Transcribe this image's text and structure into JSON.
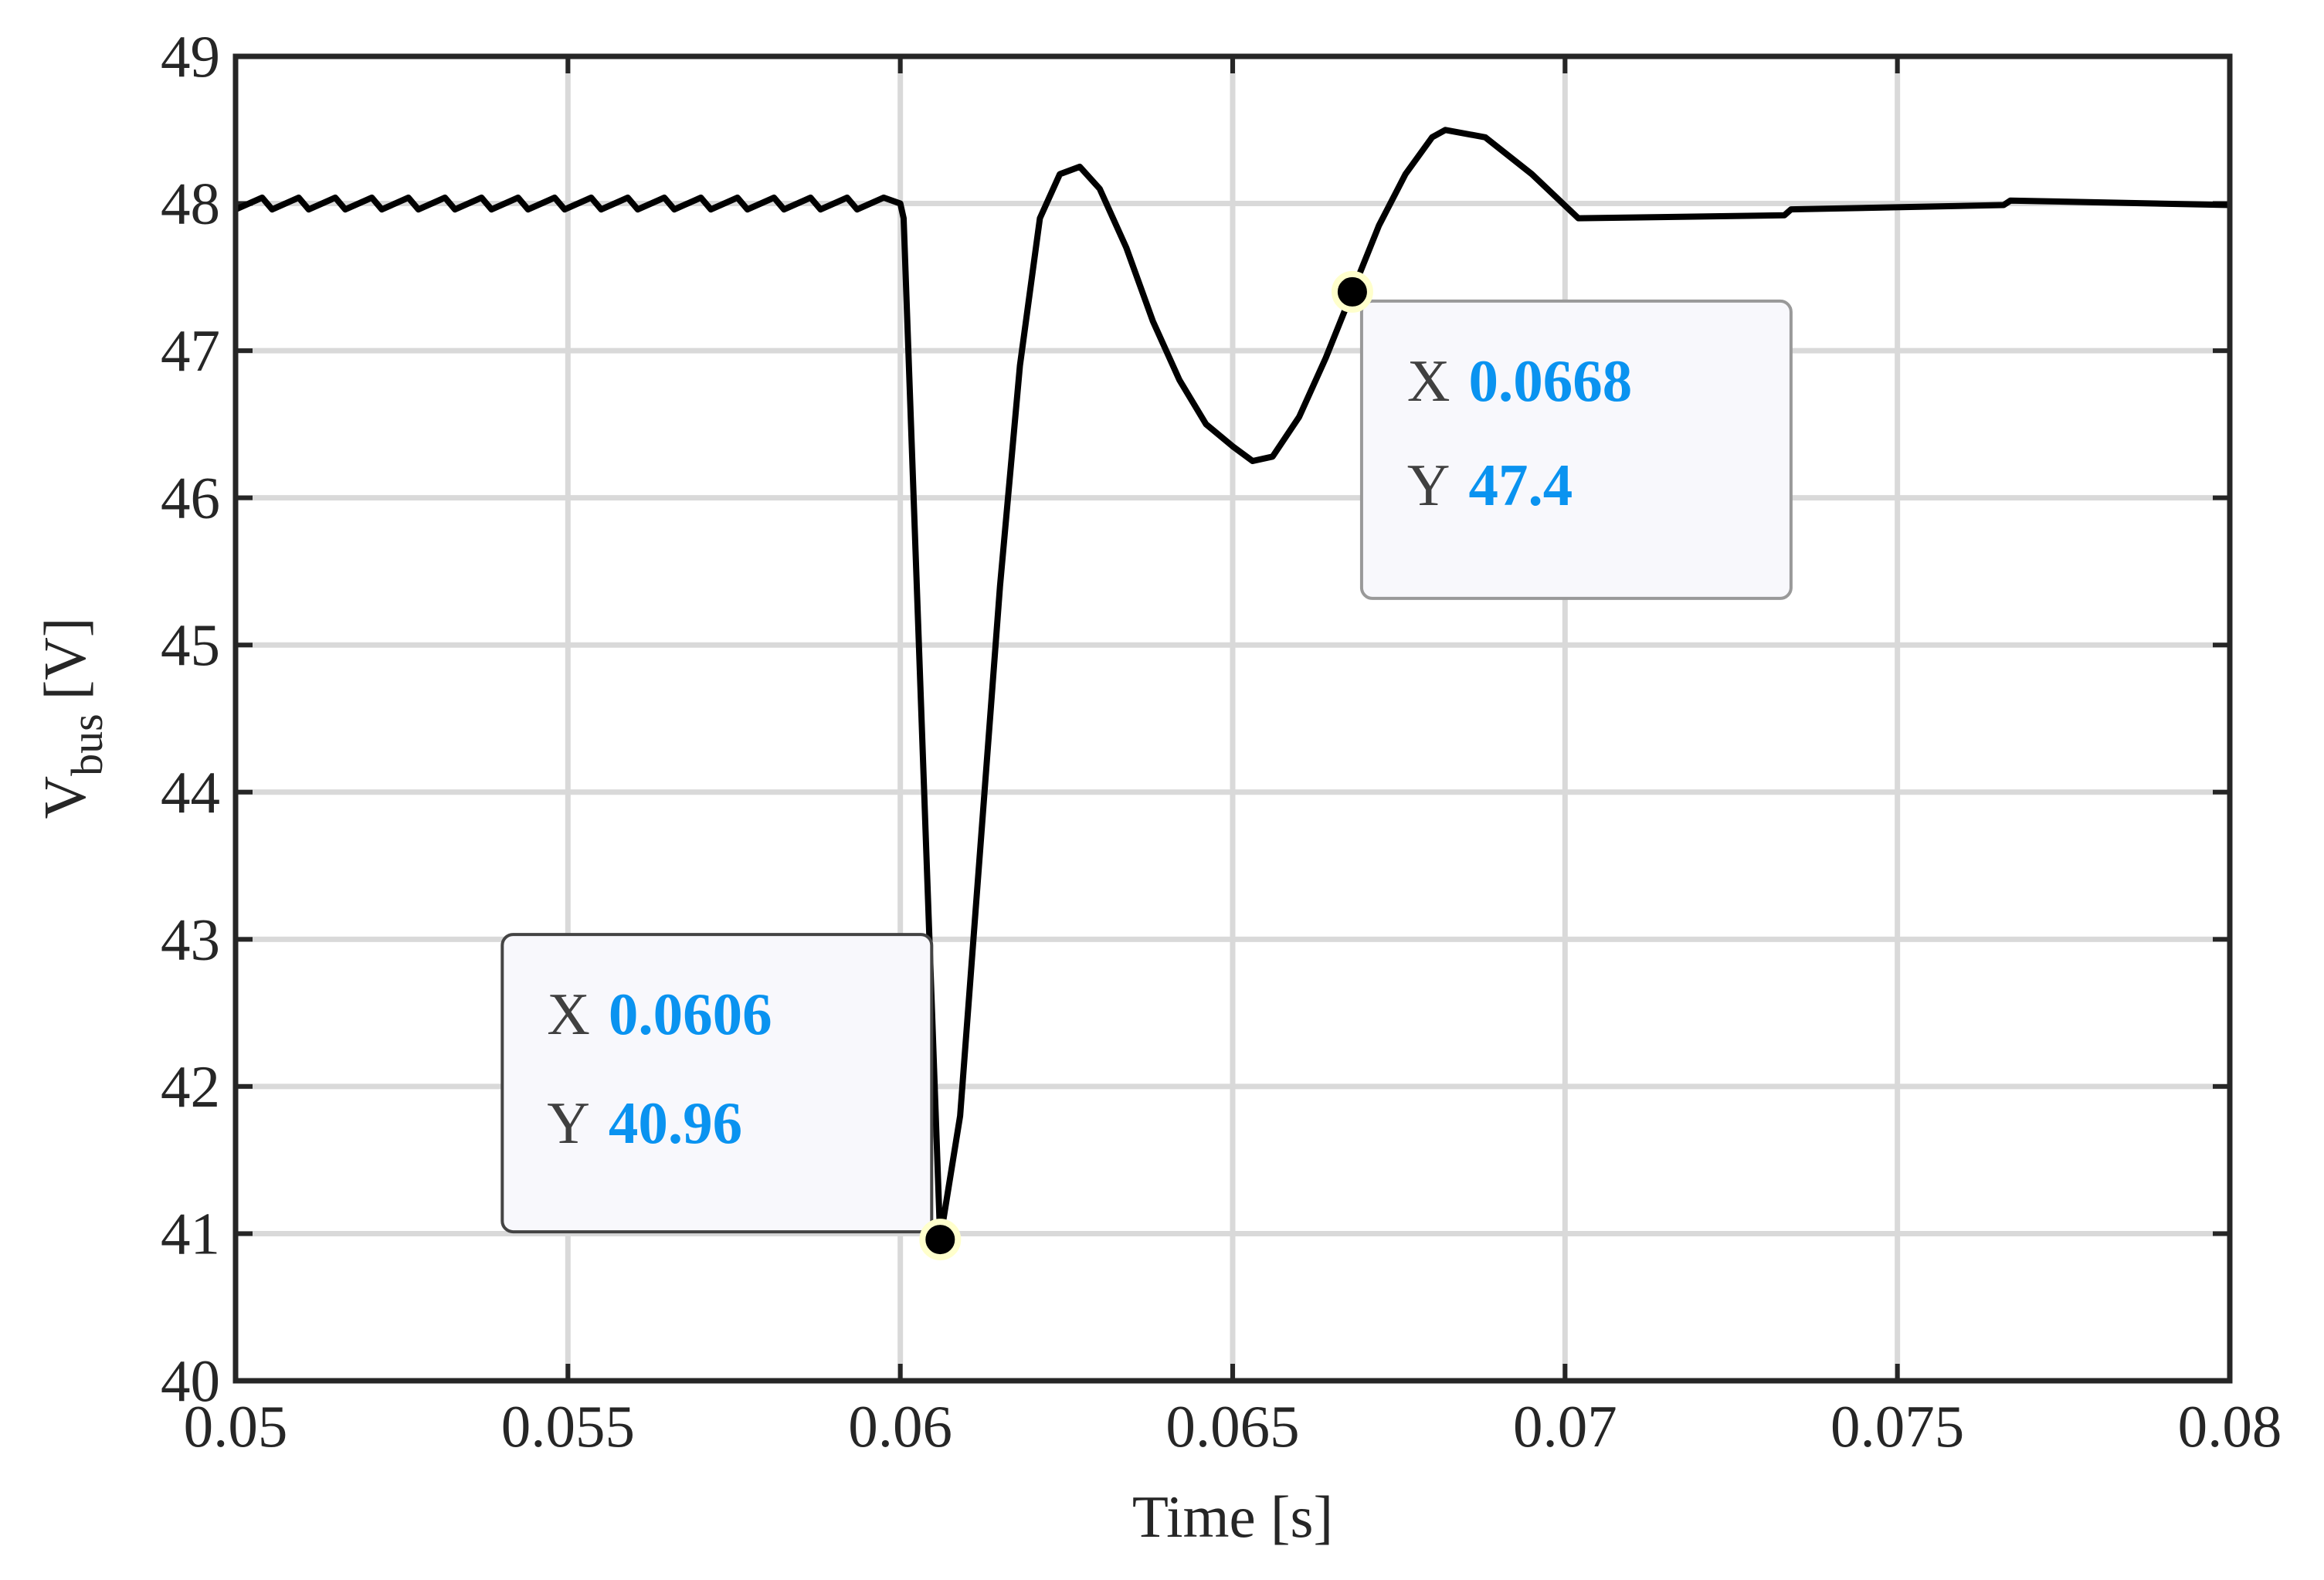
{
  "chart_data": {
    "type": "line",
    "xlabel": "Time [s]",
    "ylabel_parts": [
      "V",
      "bus",
      "[V]"
    ],
    "xlim": [
      0.05,
      0.08
    ],
    "ylim": [
      40,
      49
    ],
    "xticks": [
      0.05,
      0.055,
      0.06,
      0.065,
      0.07,
      0.075,
      0.08
    ],
    "yticks": [
      40,
      41,
      42,
      43,
      44,
      45,
      46,
      47,
      48,
      49
    ],
    "grid": true,
    "x": [
      0.05,
      0.0504,
      0.05055,
      0.05095,
      0.0511,
      0.0515,
      0.05165,
      0.05205,
      0.0522,
      0.0526,
      0.05275,
      0.05315,
      0.0533,
      0.0537,
      0.05385,
      0.05425,
      0.0544,
      0.0548,
      0.05495,
      0.05535,
      0.0555,
      0.0559,
      0.05605,
      0.05645,
      0.0566,
      0.057,
      0.05715,
      0.05755,
      0.0577,
      0.0581,
      0.05825,
      0.05865,
      0.0588,
      0.0592,
      0.05935,
      0.05975,
      0.06,
      0.06005,
      0.0606,
      0.0609,
      0.0612,
      0.0615,
      0.0618,
      0.0621,
      0.0624,
      0.0627,
      0.063,
      0.0634,
      0.0638,
      0.0642,
      0.0646,
      0.065,
      0.0653,
      0.0656,
      0.066,
      0.0664,
      0.0668,
      0.0672,
      0.0676,
      0.068,
      0.0682,
      0.0688,
      0.0695,
      0.0702,
      0.0733,
      0.0734,
      0.0766,
      0.0767,
      0.08
    ],
    "series": [
      {
        "color": "#000000",
        "values": [
          47.96,
          48.04,
          47.96,
          48.04,
          47.96,
          48.04,
          47.96,
          48.04,
          47.96,
          48.04,
          47.96,
          48.04,
          47.96,
          48.04,
          47.96,
          48.04,
          47.96,
          48.04,
          47.96,
          48.04,
          47.96,
          48.04,
          47.96,
          48.04,
          47.96,
          48.04,
          47.96,
          48.04,
          47.96,
          48.04,
          47.96,
          48.04,
          47.96,
          48.04,
          47.96,
          48.04,
          48.0,
          47.9,
          40.96,
          41.8,
          43.6,
          45.4,
          46.9,
          47.9,
          48.2,
          48.25,
          48.1,
          47.7,
          47.2,
          46.8,
          46.5,
          46.35,
          46.25,
          46.28,
          46.55,
          46.95,
          47.4,
          47.85,
          48.2,
          48.45,
          48.5,
          48.45,
          48.2,
          47.9,
          47.92,
          47.96,
          47.99,
          48.02,
          47.99
        ]
      }
    ],
    "annotations": [
      {
        "x_label": "X",
        "x": 0.0606,
        "y_label": "Y",
        "y": 40.96
      },
      {
        "x_label": "X",
        "x": 0.0668,
        "y_label": "Y",
        "y": 47.4
      }
    ]
  }
}
